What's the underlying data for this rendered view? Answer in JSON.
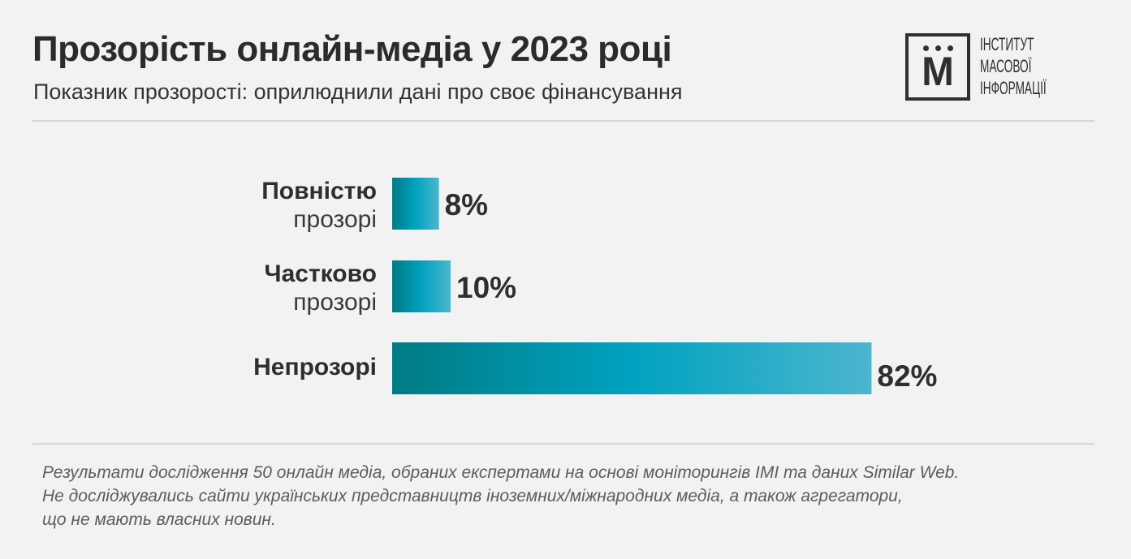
{
  "header": {
    "title": "Прозорість онлайн-медіа у 2023 році",
    "subtitle": "Показник прозорості: оприлюднили дані про своє фінансування"
  },
  "logo": {
    "mark": "М",
    "lines": [
      "ІНСТИТУТ",
      "МАСОВОЇ",
      "ІНФОРМАЦІЇ"
    ]
  },
  "chart_data": {
    "type": "bar",
    "orientation": "horizontal",
    "categories": [
      {
        "line1": "Повністю",
        "line2": "прозорі"
      },
      {
        "line1": "Частково",
        "line2": "прозорі"
      },
      {
        "line1": "Непрозорі",
        "line2": ""
      }
    ],
    "values": [
      8,
      10,
      82
    ],
    "value_labels": [
      "8%",
      "10%",
      "82%"
    ],
    "unit": "%",
    "xlim": [
      0,
      100
    ],
    "grid": false,
    "legend": "none",
    "colors": {
      "start": "#007b84",
      "mid": "#00a2c0",
      "end": "#4cb6ce"
    }
  },
  "footnote": {
    "lines": [
      "Результати дослідження 50 онлайн медіа, обраних експертами на основі моніторингів ІМІ та даних Similar Web.",
      "Не досліджувались сайти українських представництв іноземних/міжнародних медіа, а також агрегатори,",
      "що не мають власних новин."
    ]
  }
}
